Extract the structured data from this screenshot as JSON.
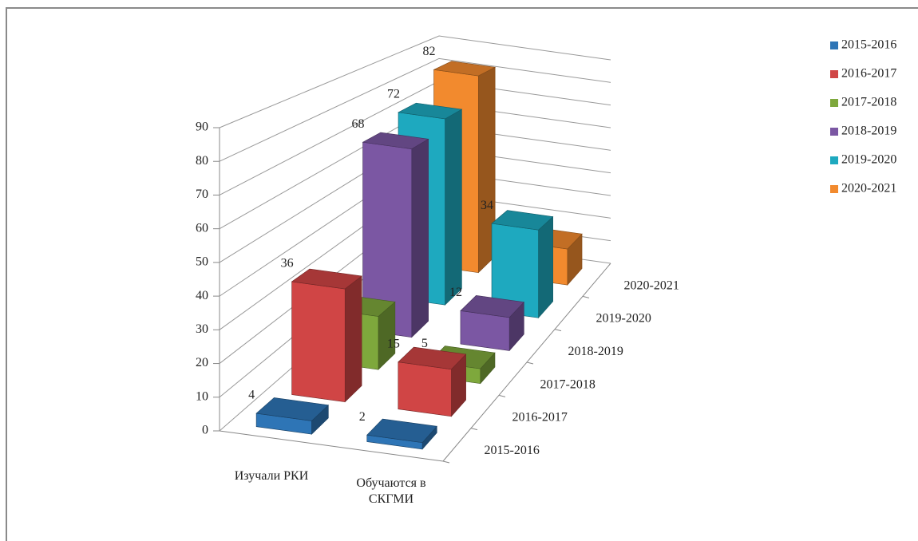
{
  "chart_data": {
    "type": "bar3d",
    "categories": [
      "Изучали РКИ",
      "Обучаются в СКГМИ"
    ],
    "series": [
      {
        "name": "2015-2016",
        "color": "#2e75b6",
        "values": [
          4,
          2
        ]
      },
      {
        "name": "2016-2017",
        "color": "#d04545",
        "values": [
          36,
          15
        ]
      },
      {
        "name": "2017-2018",
        "color": "#7ea83c",
        "values": [
          18,
          5
        ]
      },
      {
        "name": "2018-2019",
        "color": "#7b57a3",
        "values": [
          68,
          12
        ]
      },
      {
        "name": "2019-2020",
        "color": "#1ea9bf",
        "values": [
          72,
          34
        ]
      },
      {
        "name": "2020-2021",
        "color": "#f28a2e",
        "values": [
          82,
          15
        ]
      }
    ],
    "ylim": [
      0,
      90
    ],
    "yticks": [
      0,
      10,
      20,
      30,
      40,
      50,
      60,
      70,
      80,
      90
    ],
    "grid": true,
    "legend": "right"
  }
}
